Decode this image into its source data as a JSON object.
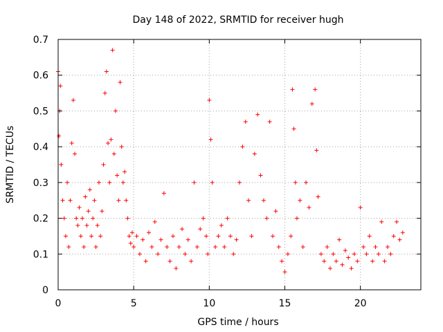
{
  "chart_data": {
    "type": "scatter",
    "title": "Day 148 of 2022, SRMTID for receiver hugh",
    "xlabel": "GPS time / hours",
    "ylabel": "SRMTID / TECUs",
    "xlim": [
      0,
      24
    ],
    "ylim": [
      0,
      0.7
    ],
    "xticks": [
      0,
      5,
      10,
      15,
      20
    ],
    "xtick_labels": [
      "0",
      "5",
      "10",
      "15",
      "20"
    ],
    "yticks": [
      0,
      0.1,
      0.2,
      0.3,
      0.4,
      0.5,
      0.6,
      0.7
    ],
    "ytick_labels": [
      "0",
      "0.1",
      "0.2",
      "0.3",
      "0.4",
      "0.5",
      "0.6",
      "0.7"
    ],
    "grid": true,
    "marker": "+",
    "color": "#ff0000",
    "series": [
      {
        "name": "SRMTID",
        "x": [
          0.0,
          0.05,
          0.1,
          0.15,
          0.2,
          0.3,
          0.4,
          0.5,
          0.6,
          0.7,
          0.8,
          0.9,
          1.0,
          1.1,
          1.2,
          1.3,
          1.4,
          1.5,
          1.6,
          1.7,
          1.8,
          1.9,
          2.0,
          2.1,
          2.2,
          2.3,
          2.4,
          2.5,
          2.6,
          2.7,
          2.8,
          2.9,
          3.0,
          3.1,
          3.2,
          3.3,
          3.4,
          3.5,
          3.6,
          3.7,
          3.8,
          3.9,
          4.0,
          4.1,
          4.2,
          4.3,
          4.4,
          4.5,
          4.6,
          4.7,
          4.8,
          4.9,
          5.0,
          5.2,
          5.4,
          5.6,
          5.8,
          6.0,
          6.2,
          6.4,
          6.6,
          6.8,
          7.0,
          7.2,
          7.4,
          7.6,
          7.8,
          8.0,
          8.2,
          8.4,
          8.6,
          8.8,
          9.0,
          9.2,
          9.4,
          9.6,
          9.8,
          9.9,
          10.0,
          10.1,
          10.2,
          10.4,
          10.6,
          10.8,
          11.0,
          11.2,
          11.4,
          11.6,
          11.8,
          12.0,
          12.2,
          12.4,
          12.6,
          12.8,
          13.0,
          13.2,
          13.4,
          13.6,
          13.8,
          14.0,
          14.2,
          14.4,
          14.6,
          14.8,
          15.0,
          15.2,
          15.4,
          15.5,
          15.6,
          15.7,
          15.8,
          16.0,
          16.2,
          16.4,
          16.6,
          16.8,
          17.0,
          17.1,
          17.2,
          17.4,
          17.6,
          17.8,
          18.0,
          18.2,
          18.4,
          18.6,
          18.8,
          19.0,
          19.2,
          19.4,
          19.6,
          19.8,
          20.0,
          20.2,
          20.4,
          20.6,
          20.8,
          21.0,
          21.2,
          21.4,
          21.6,
          21.8,
          22.0,
          22.2,
          22.4,
          22.6,
          22.8
        ],
        "y": [
          0.61,
          0.43,
          0.5,
          0.57,
          0.35,
          0.25,
          0.2,
          0.15,
          0.3,
          0.12,
          0.25,
          0.41,
          0.53,
          0.38,
          0.2,
          0.18,
          0.23,
          0.15,
          0.2,
          0.12,
          0.26,
          0.18,
          0.22,
          0.28,
          0.15,
          0.2,
          0.25,
          0.12,
          0.18,
          0.3,
          0.15,
          0.22,
          0.35,
          0.55,
          0.61,
          0.41,
          0.3,
          0.42,
          0.67,
          0.38,
          0.5,
          0.32,
          0.25,
          0.58,
          0.4,
          0.3,
          0.33,
          0.25,
          0.2,
          0.15,
          0.13,
          0.16,
          0.12,
          0.15,
          0.1,
          0.14,
          0.08,
          0.16,
          0.12,
          0.19,
          0.1,
          0.14,
          0.27,
          0.12,
          0.08,
          0.15,
          0.06,
          0.12,
          0.17,
          0.1,
          0.14,
          0.08,
          0.3,
          0.12,
          0.17,
          0.2,
          0.15,
          0.1,
          0.53,
          0.42,
          0.3,
          0.12,
          0.15,
          0.18,
          0.12,
          0.2,
          0.15,
          0.1,
          0.14,
          0.3,
          0.4,
          0.47,
          0.25,
          0.15,
          0.38,
          0.49,
          0.32,
          0.25,
          0.2,
          0.47,
          0.15,
          0.22,
          0.12,
          0.08,
          0.05,
          0.1,
          0.15,
          0.56,
          0.45,
          0.3,
          0.2,
          0.25,
          0.12,
          0.3,
          0.23,
          0.52,
          0.56,
          0.39,
          0.26,
          0.1,
          0.08,
          0.12,
          0.06,
          0.1,
          0.08,
          0.14,
          0.07,
          0.11,
          0.09,
          0.06,
          0.1,
          0.08,
          0.23,
          0.12,
          0.1,
          0.15,
          0.08,
          0.12,
          0.1,
          0.19,
          0.08,
          0.12,
          0.1,
          0.15,
          0.19,
          0.14,
          0.16
        ]
      }
    ]
  }
}
